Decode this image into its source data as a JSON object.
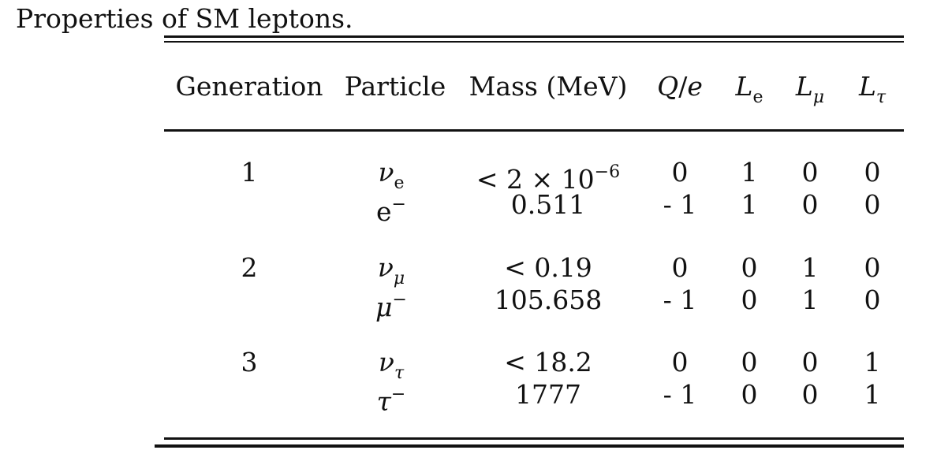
{
  "caption": "Properties of SM leptons.",
  "table": {
    "headers": [
      "Generation",
      "Particle",
      "Mass (MeV)",
      "Q/e",
      "Le",
      "Lμ",
      "Lτ"
    ],
    "rows": [
      {
        "generation": "1",
        "particle": "νe",
        "mass": "< 2 × 10−6",
        "charge": "0",
        "Le": "1",
        "Lmu": "0",
        "Ltau": "0"
      },
      {
        "generation": "",
        "particle": "e−",
        "mass": "0.511",
        "charge": "- 1",
        "Le": "1",
        "Lmu": "0",
        "Ltau": "0"
      },
      {
        "generation": "2",
        "particle": "νμ",
        "mass": "< 0.19",
        "charge": "0",
        "Le": "0",
        "Lmu": "1",
        "Ltau": "0"
      },
      {
        "generation": "",
        "particle": "μ−",
        "mass": "105.658",
        "charge": "- 1",
        "Le": "0",
        "Lmu": "1",
        "Ltau": "0"
      },
      {
        "generation": "3",
        "particle": "ντ",
        "mass": "< 18.2",
        "charge": "0",
        "Le": "0",
        "Lmu": "0",
        "Ltau": "1"
      },
      {
        "generation": "",
        "particle": "τ−",
        "mass": "1777",
        "charge": "- 1",
        "Le": "0",
        "Lmu": "0",
        "Ltau": "1"
      }
    ]
  }
}
